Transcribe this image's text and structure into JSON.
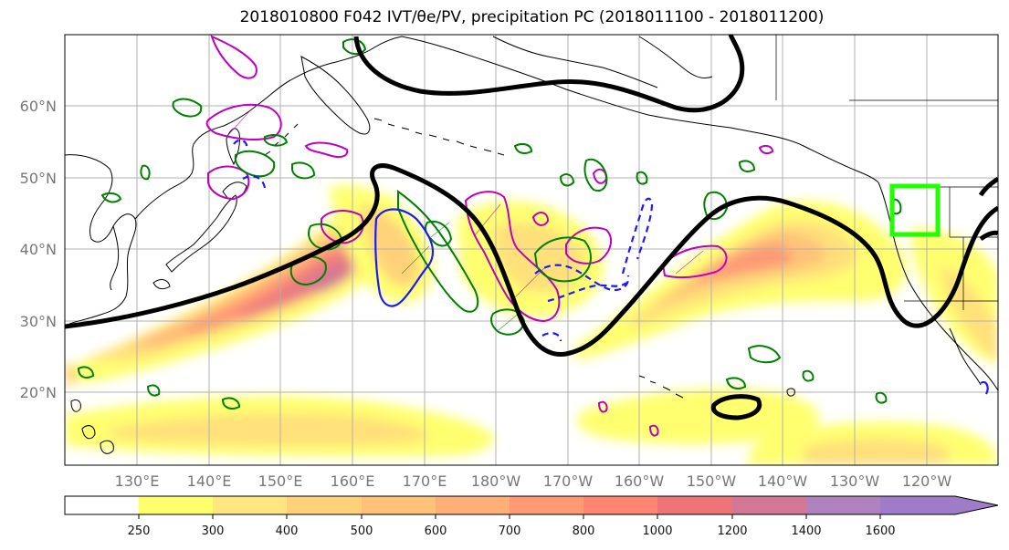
{
  "title": "2018010800 F042 IVT/θe/PV, precipitation PC (2018011100 - 2018011200)",
  "map": {
    "lat_labels": [
      "60°N",
      "50°N",
      "40°N",
      "30°N",
      "20°N"
    ],
    "lon_labels": [
      "130°E",
      "140°E",
      "150°E",
      "160°E",
      "170°E",
      "180°W",
      "170°W",
      "160°W",
      "150°W",
      "140°W",
      "130°W",
      "120°W"
    ],
    "region_box_color": "#22ff00",
    "contour_colors": {
      "theta_e": "#000000",
      "pv_positive": "#008000",
      "pv_negative": "#1a1aff",
      "precip_pc": "#c000c0"
    }
  },
  "colorbar": {
    "tick_labels": [
      "250",
      "300",
      "400",
      "500",
      "600",
      "700",
      "800",
      "1000",
      "1200",
      "1400",
      "1600"
    ],
    "colors": [
      "#ffffff",
      "#ffff6e",
      "#ffe680",
      "#ffd27a",
      "#ffc278",
      "#ffaf78",
      "#ff9a74",
      "#ff8670",
      "#ee7478",
      "#d27896",
      "#b082bd",
      "#a07cc8"
    ]
  }
}
